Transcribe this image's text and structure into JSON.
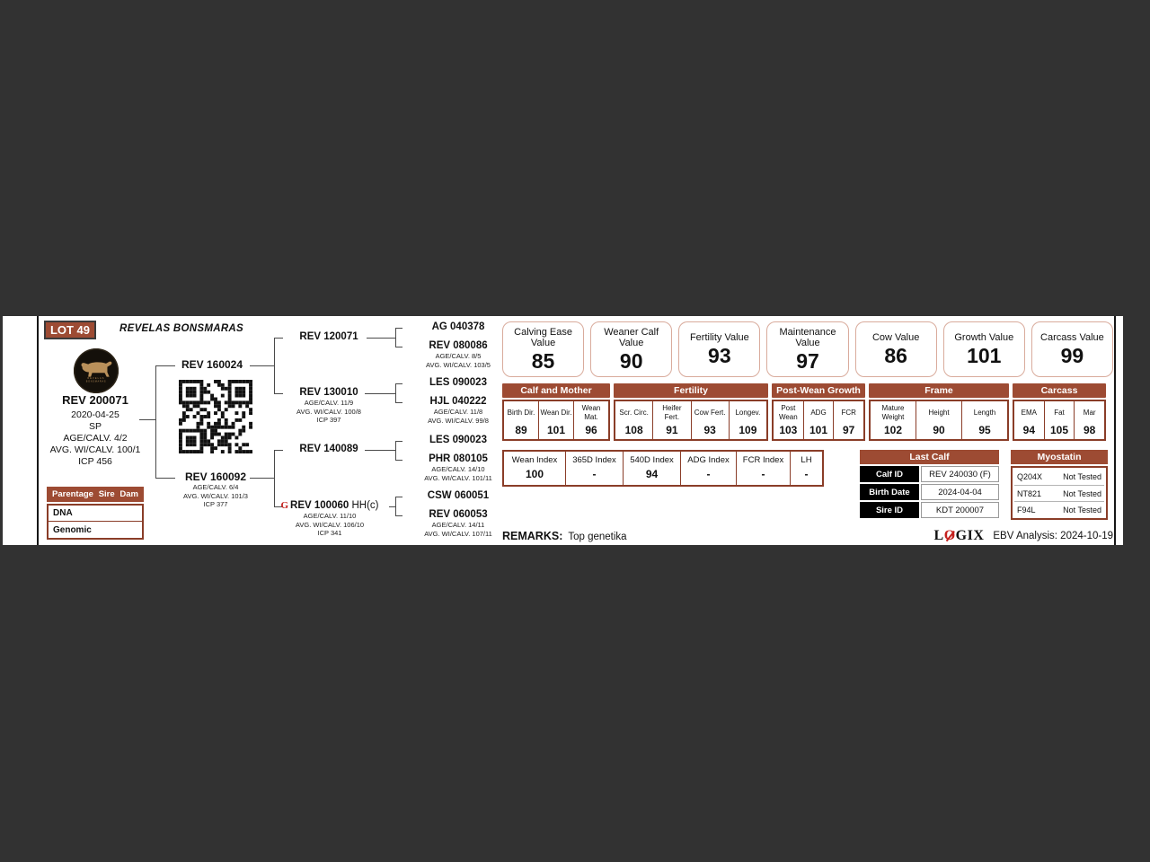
{
  "lot": {
    "badge": "LOT 49",
    "farm_name": "REVELAS BONSMARAS"
  },
  "logo": {
    "caption_top": "REVELAS",
    "caption_bottom": "BONSMARAS"
  },
  "subject": {
    "id": "REV 200071",
    "birth_date": "2020-04-25",
    "status": "SP",
    "line1": "AGE/CALV. 4/2",
    "line2": "AVG. WI/CALV. 100/1",
    "line3": "ICP 456"
  },
  "parentage": {
    "col1": "Parentage",
    "col2": "Sire",
    "col3": "Dam",
    "row1": "DNA",
    "row2": "Genomic"
  },
  "pedigree": {
    "sire": {
      "id": "REV 160024"
    },
    "dam": {
      "id": "REV 160092",
      "l1": "AGE/CALV. 6/4",
      "l2": "AVG. WI/CALV. 101/3",
      "l3": "ICP 377"
    },
    "g3a": {
      "id": "REV 120071"
    },
    "g3b": {
      "id": "REV 130010",
      "l1": "AGE/CALV. 11/9",
      "l2": "AVG. WI/CALV. 100/8",
      "l3": "ICP 397"
    },
    "g3c": {
      "id": "REV 140089"
    },
    "g3d": {
      "id": "REV 100060",
      "suffix": "HH(c)",
      "icon": "G",
      "l1": "AGE/CALV. 11/10",
      "l2": "AVG. WI/CALV. 106/10",
      "l3": "ICP 341"
    },
    "g4a": {
      "id": "AG 040378"
    },
    "g4b": {
      "id": "REV 080086",
      "l1": "AGE/CALV. 8/5",
      "l2": "AVG. WI/CALV. 103/5"
    },
    "g4c": {
      "id": "LES 090023"
    },
    "g4d": {
      "id": "HJL 040222",
      "l1": "AGE/CALV. 11/8",
      "l2": "AVG. WI/CALV. 99/8"
    },
    "g4e": {
      "id": "LES 090023"
    },
    "g4f": {
      "id": "PHR 080105",
      "l1": "AGE/CALV. 14/10",
      "l2": "AVG. WI/CALV. 101/11"
    },
    "g4g": {
      "id": "CSW 060051"
    },
    "g4h": {
      "id": "REV 060053",
      "l1": "AGE/CALV. 14/11",
      "l2": "AVG. WI/CALV. 107/11"
    }
  },
  "values": [
    {
      "label": "Calving Ease Value",
      "value": "85"
    },
    {
      "label": "Weaner Calf Value",
      "value": "90"
    },
    {
      "label": "Fertility Value",
      "value": "93"
    },
    {
      "label": "Maintenance Value",
      "value": "97"
    },
    {
      "label": "Cow Value",
      "value": "86"
    },
    {
      "label": "Growth Value",
      "value": "101"
    },
    {
      "label": "Carcass Value",
      "value": "99"
    }
  ],
  "ebv": {
    "groups": [
      {
        "name": "Calf and Mother",
        "cols": [
          {
            "label": "Birth Dir.",
            "value": "89"
          },
          {
            "label": "Wean Dir.",
            "value": "101"
          },
          {
            "label": "Wean Mat.",
            "value": "96"
          }
        ]
      },
      {
        "name": "Fertility",
        "cols": [
          {
            "label": "Scr. Circ.",
            "value": "108"
          },
          {
            "label": "Heifer Fert.",
            "value": "91"
          },
          {
            "label": "Cow Fert.",
            "value": "93"
          },
          {
            "label": "Longev.",
            "value": "109"
          }
        ]
      },
      {
        "name": "Post-Wean Growth",
        "cols": [
          {
            "label": "Post Wean",
            "value": "103"
          },
          {
            "label": "ADG",
            "value": "101"
          },
          {
            "label": "FCR",
            "value": "97"
          }
        ]
      },
      {
        "name": "Frame",
        "cols": [
          {
            "label": "Mature Weight",
            "value": "102"
          },
          {
            "label": "Height",
            "value": "90"
          },
          {
            "label": "Length",
            "value": "95"
          }
        ]
      },
      {
        "name": "Carcass",
        "cols": [
          {
            "label": "EMA",
            "value": "94"
          },
          {
            "label": "Fat",
            "value": "105"
          },
          {
            "label": "Mar",
            "value": "98"
          }
        ]
      }
    ]
  },
  "indexes": [
    {
      "label": "Wean Index",
      "value": "100"
    },
    {
      "label": "365D Index",
      "value": "-"
    },
    {
      "label": "540D Index",
      "value": "94"
    },
    {
      "label": "ADG Index",
      "value": "-"
    },
    {
      "label": "FCR Index",
      "value": "-"
    },
    {
      "label": "LH",
      "value": "-"
    }
  ],
  "last_calf": {
    "title": "Last Calf",
    "rows": [
      {
        "label": "Calf ID",
        "value": "REV 240030 (F)"
      },
      {
        "label": "Birth Date",
        "value": "2024-04-04"
      },
      {
        "label": "Sire ID",
        "value": "KDT 200007"
      }
    ]
  },
  "myostatin": {
    "title": "Myostatin",
    "rows": [
      {
        "gene": "Q204X",
        "result": "Not Tested"
      },
      {
        "gene": "NT821",
        "result": "Not Tested"
      },
      {
        "gene": "F94L",
        "result": "Not Tested"
      }
    ]
  },
  "remarks": {
    "label": "REMARKS:",
    "text": "Top genetika"
  },
  "footer": {
    "logo_l": "L",
    "logo_o": "O",
    "logo_gix": "GIX",
    "analysis": "EBV Analysis: 2024-10-19"
  },
  "colors": {
    "accent_brown": "#9d4b33",
    "border_brown": "#8a3d28",
    "box_border": "#d9ab9c",
    "red_accent": "#c4201d",
    "page_bg": "#323232"
  }
}
